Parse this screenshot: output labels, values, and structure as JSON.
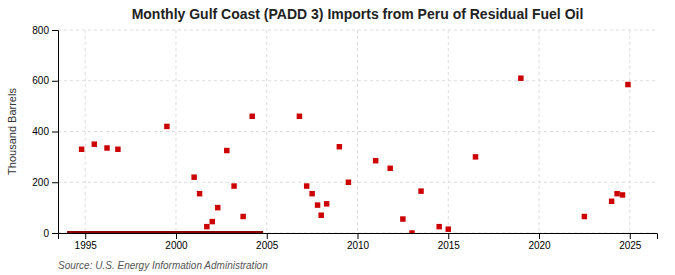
{
  "chart_data": {
    "type": "scatter",
    "title": "Monthly Gulf Coast (PADD 3) Imports from Peru of Residual Fuel Oil",
    "y_label": "Thousand Barrels",
    "source": "Source: U.S. Energy Information Administration",
    "xlim": [
      1993.5,
      2026.5
    ],
    "ylim": [
      0,
      800
    ],
    "xticks": [
      1995,
      2000,
      2005,
      2010,
      2015,
      2020,
      2025
    ],
    "yticks": [
      0,
      200,
      400,
      600,
      800
    ],
    "grid": true,
    "series": [
      {
        "type": "scatter",
        "marker": "square",
        "color": "#cc0000",
        "x": [
          1994.8,
          1995.5,
          1996.2,
          1996.8,
          1999.5,
          2001.0,
          2001.3,
          2001.7,
          2002.0,
          2002.3,
          2002.8,
          2003.2,
          2003.7,
          2004.2,
          2006.8,
          2007.2,
          2007.5,
          2007.8,
          2008.0,
          2008.3,
          2009.0,
          2009.5,
          2011.0,
          2011.8,
          2012.5,
          2013.0,
          2013.5,
          2014.5,
          2015.0,
          2016.5,
          2019.0,
          2022.5,
          2024.0,
          2024.3,
          2024.6,
          2024.9
        ],
        "values": [
          330,
          350,
          335,
          330,
          420,
          220,
          155,
          25,
          45,
          100,
          325,
          185,
          65,
          460,
          460,
          185,
          155,
          110,
          70,
          115,
          340,
          200,
          285,
          255,
          55,
          0,
          165,
          25,
          15,
          300,
          610,
          65,
          125,
          155,
          150,
          585
        ]
      },
      {
        "type": "line",
        "color": "#8b0000",
        "x": [
          1994.0,
          2004.8
        ],
        "values": [
          0,
          0
        ]
      }
    ]
  }
}
